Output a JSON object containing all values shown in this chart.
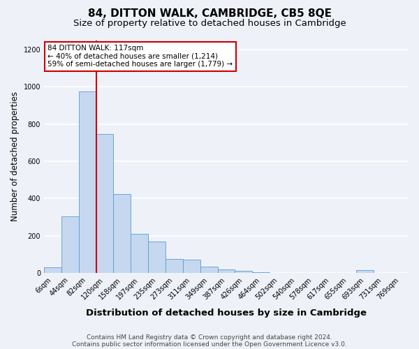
{
  "title": "84, DITTON WALK, CAMBRIDGE, CB5 8QE",
  "subtitle": "Size of property relative to detached houses in Cambridge",
  "xlabel": "Distribution of detached houses by size in Cambridge",
  "ylabel": "Number of detached properties",
  "bar_labels": [
    "6sqm",
    "44sqm",
    "82sqm",
    "120sqm",
    "158sqm",
    "197sqm",
    "235sqm",
    "273sqm",
    "311sqm",
    "349sqm",
    "387sqm",
    "426sqm",
    "464sqm",
    "502sqm",
    "540sqm",
    "578sqm",
    "617sqm",
    "655sqm",
    "693sqm",
    "731sqm",
    "769sqm"
  ],
  "bar_values": [
    30,
    305,
    975,
    745,
    425,
    210,
    170,
    75,
    70,
    35,
    20,
    13,
    5,
    2,
    0,
    2,
    0,
    0,
    15,
    0,
    2
  ],
  "bar_color": "#c5d8f0",
  "bar_edge_color": "#5b9bd5",
  "vline_idx": 2.5,
  "vline_color": "#cc0000",
  "annotation_line1": "84 DITTON WALK: 117sqm",
  "annotation_line2": "← 40% of detached houses are smaller (1,214)",
  "annotation_line3": "59% of semi-detached houses are larger (1,779) →",
  "annotation_box_color": "white",
  "annotation_box_edge": "#cc0000",
  "ylim": [
    0,
    1250
  ],
  "yticks": [
    0,
    200,
    400,
    600,
    800,
    1000,
    1200
  ],
  "footnote1": "Contains HM Land Registry data © Crown copyright and database right 2024.",
  "footnote2": "Contains public sector information licensed under the Open Government Licence v3.0.",
  "bg_color": "#eef2f8",
  "grid_color": "white",
  "title_fontsize": 11,
  "subtitle_fontsize": 9.5,
  "xlabel_fontsize": 9.5,
  "ylabel_fontsize": 8.5,
  "tick_fontsize": 7,
  "annot_fontsize": 7.5,
  "footnote_fontsize": 6.5
}
